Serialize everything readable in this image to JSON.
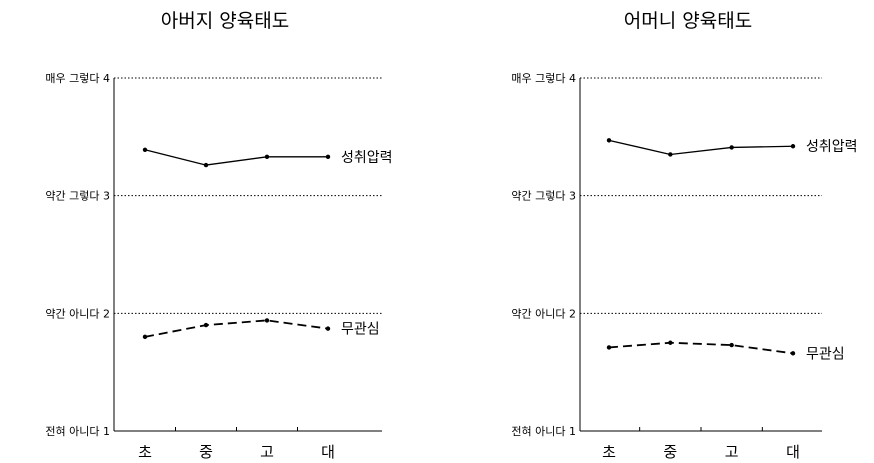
{
  "chart_data": [
    {
      "type": "line",
      "title": "아버지 양육태도",
      "categories": [
        "초",
        "중",
        "고",
        "대"
      ],
      "yticks": [
        {
          "value": 1,
          "label": "전혀 아니다 1"
        },
        {
          "value": 2,
          "label": "약간 아니다 2"
        },
        {
          "value": 3,
          "label": "약간 그렇다 3"
        },
        {
          "value": 4,
          "label": "매우 그렇다 4"
        }
      ],
      "ylim": [
        1,
        4
      ],
      "grid": true,
      "series": [
        {
          "name": "성취압력",
          "style": "solid",
          "values": [
            3.39,
            3.26,
            3.33,
            3.33
          ]
        },
        {
          "name": "무관심",
          "style": "dashed",
          "values": [
            1.8,
            1.9,
            1.94,
            1.87
          ]
        }
      ]
    },
    {
      "type": "line",
      "title": "어머니 양육태도",
      "categories": [
        "초",
        "중",
        "고",
        "대"
      ],
      "yticks": [
        {
          "value": 1,
          "label": "전혀 아니다 1"
        },
        {
          "value": 2,
          "label": "약간 아니다 2"
        },
        {
          "value": 3,
          "label": "약간 그렇다 3"
        },
        {
          "value": 4,
          "label": "매우 그렇다 4"
        }
      ],
      "ylim": [
        1,
        4
      ],
      "grid": true,
      "series": [
        {
          "name": "성취압력",
          "style": "solid",
          "values": [
            3.47,
            3.35,
            3.41,
            3.42
          ]
        },
        {
          "name": "무관심",
          "style": "dashed",
          "values": [
            1.71,
            1.75,
            1.73,
            1.66
          ]
        }
      ]
    }
  ]
}
